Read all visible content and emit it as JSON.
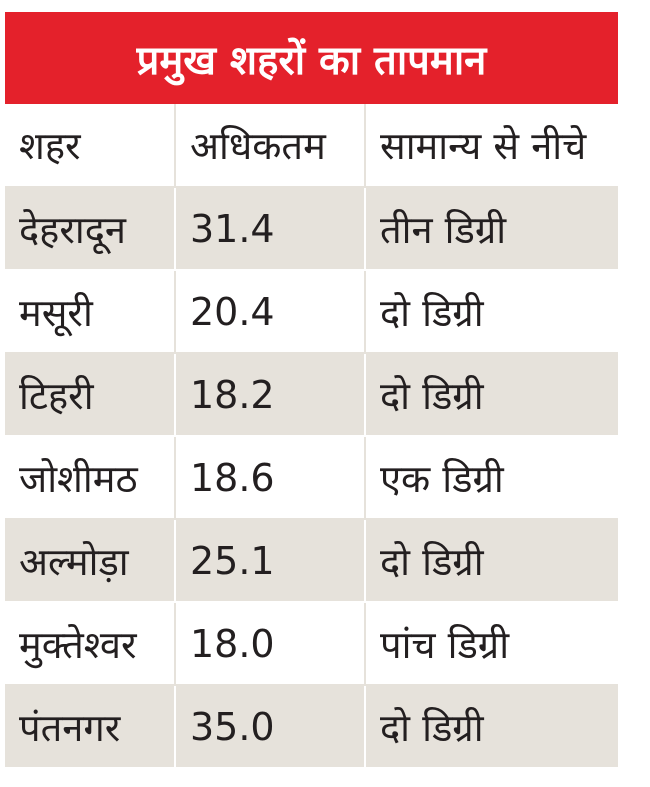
{
  "title": "प्रमुख शहरों का तापमान",
  "headers": [
    "शहर",
    "अधिकतम",
    "सामान्य से नीचे"
  ],
  "rows": [
    [
      "देहरादून",
      "31.4",
      "तीन डिग्री"
    ],
    [
      "मसूरी",
      "20.4",
      "दो डिग्री"
    ],
    [
      "टिहरी",
      "18.2",
      "दो डिग्री"
    ],
    [
      "जोशीमठ",
      "18.6",
      "एक डिग्री"
    ],
    [
      "अल्मोड़ा",
      "25.1",
      "दो डिग्री"
    ],
    [
      "मुक्तेश्वर",
      "18.0",
      "पांच डिग्री"
    ],
    [
      "पंतनगर",
      "35.0",
      "दो डिग्री"
    ]
  ],
  "colors": {
    "title_background": "#e4212b",
    "title_text": "#ffffff",
    "stripe": "#e6e2db",
    "text": "#231f20"
  }
}
